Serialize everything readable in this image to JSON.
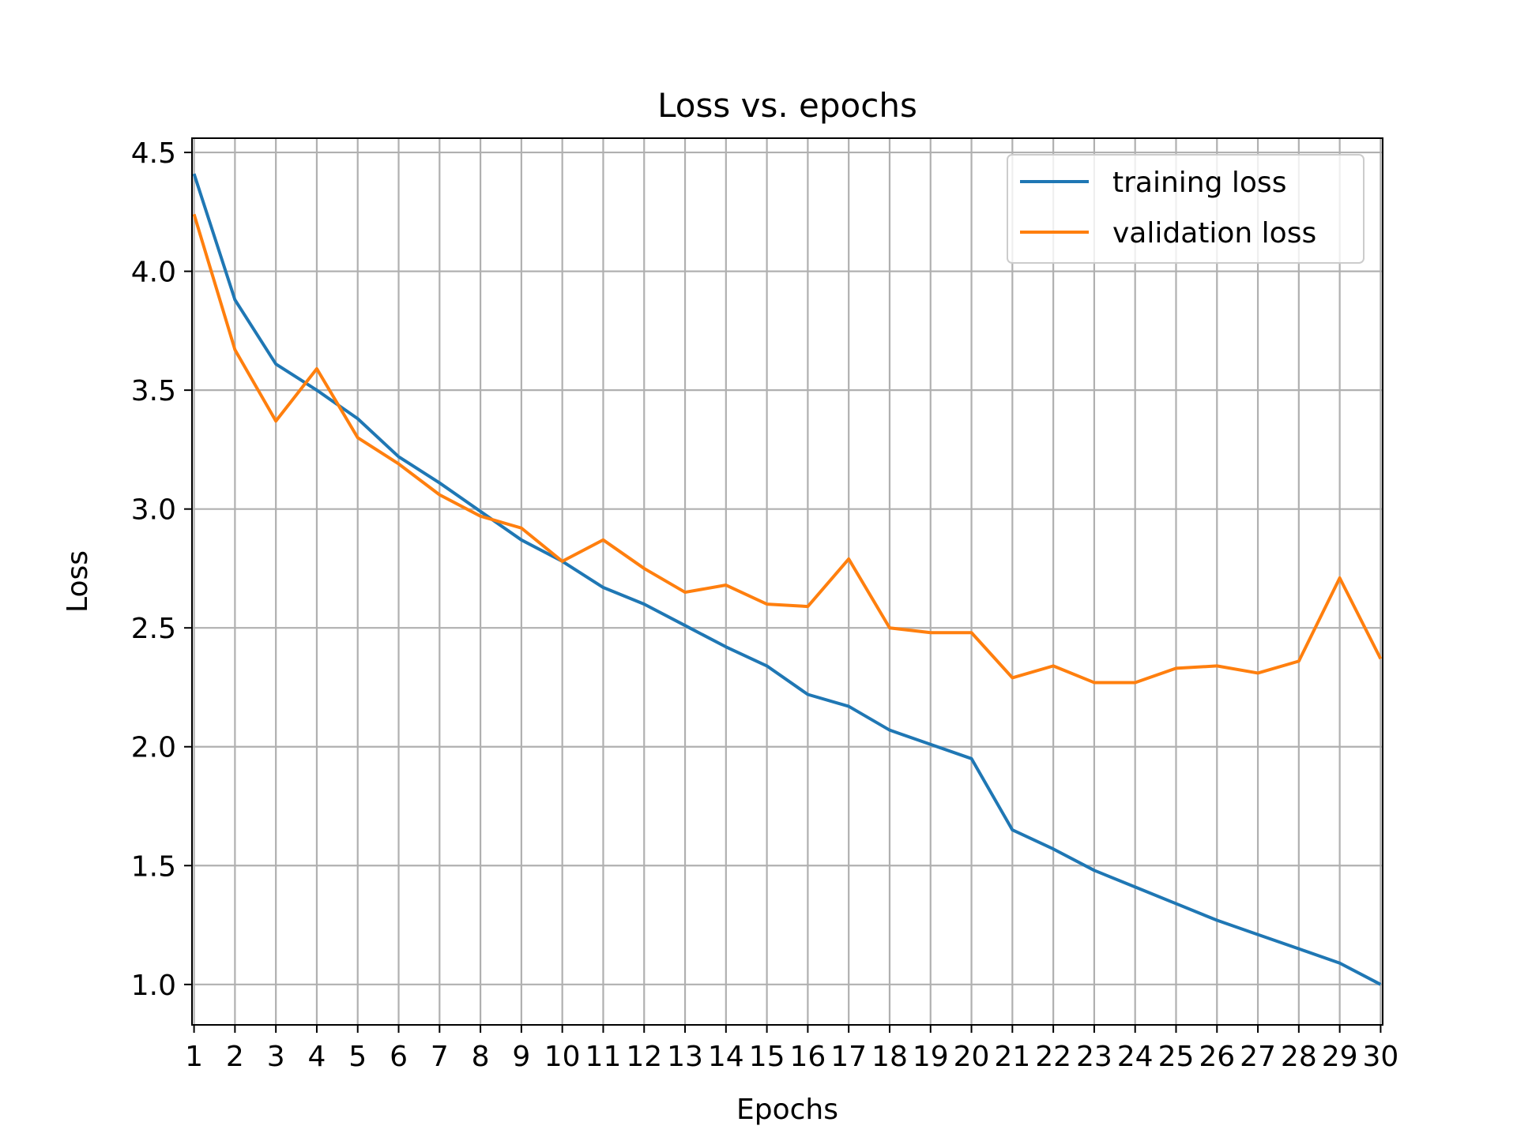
{
  "chart_data": {
    "type": "line",
    "title": "Loss vs. epochs",
    "xlabel": "Epochs",
    "ylabel": "Loss",
    "x": [
      1,
      2,
      3,
      4,
      5,
      6,
      7,
      8,
      9,
      10,
      11,
      12,
      13,
      14,
      15,
      16,
      17,
      18,
      19,
      20,
      21,
      22,
      23,
      24,
      25,
      26,
      27,
      28,
      29,
      30
    ],
    "xlim": [
      0.95,
      30.05
    ],
    "ylim": [
      0.83,
      4.56
    ],
    "yticks": [
      1.0,
      1.5,
      2.0,
      2.5,
      3.0,
      3.5,
      4.0,
      4.5
    ],
    "ytick_labels": [
      "1.0",
      "1.5",
      "2.0",
      "2.5",
      "3.0",
      "3.5",
      "4.0",
      "4.5"
    ],
    "xtick_labels": [
      "1",
      "2",
      "3",
      "4",
      "5",
      "6",
      "7",
      "8",
      "9",
      "10",
      "11",
      "12",
      "13",
      "14",
      "15",
      "16",
      "17",
      "18",
      "19",
      "20",
      "21",
      "22",
      "23",
      "24",
      "25",
      "26",
      "27",
      "28",
      "29",
      "30"
    ],
    "grid": true,
    "legend_position": "top-right",
    "series": [
      {
        "name": "training loss",
        "color": "#1f77b4",
        "values": [
          4.41,
          3.88,
          3.61,
          3.5,
          3.38,
          3.22,
          3.11,
          2.99,
          2.87,
          2.78,
          2.67,
          2.6,
          2.51,
          2.42,
          2.34,
          2.22,
          2.17,
          2.07,
          2.01,
          1.95,
          1.65,
          1.57,
          1.48,
          1.41,
          1.34,
          1.27,
          1.21,
          1.15,
          1.09,
          1.0
        ]
      },
      {
        "name": "validation loss",
        "color": "#ff7f0e",
        "values": [
          4.24,
          3.67,
          3.37,
          3.59,
          3.3,
          3.19,
          3.06,
          2.97,
          2.92,
          2.78,
          2.87,
          2.75,
          2.65,
          2.68,
          2.6,
          2.59,
          2.79,
          2.5,
          2.48,
          2.48,
          2.29,
          2.34,
          2.27,
          2.27,
          2.33,
          2.34,
          2.31,
          2.36,
          2.71,
          2.37
        ]
      }
    ]
  }
}
